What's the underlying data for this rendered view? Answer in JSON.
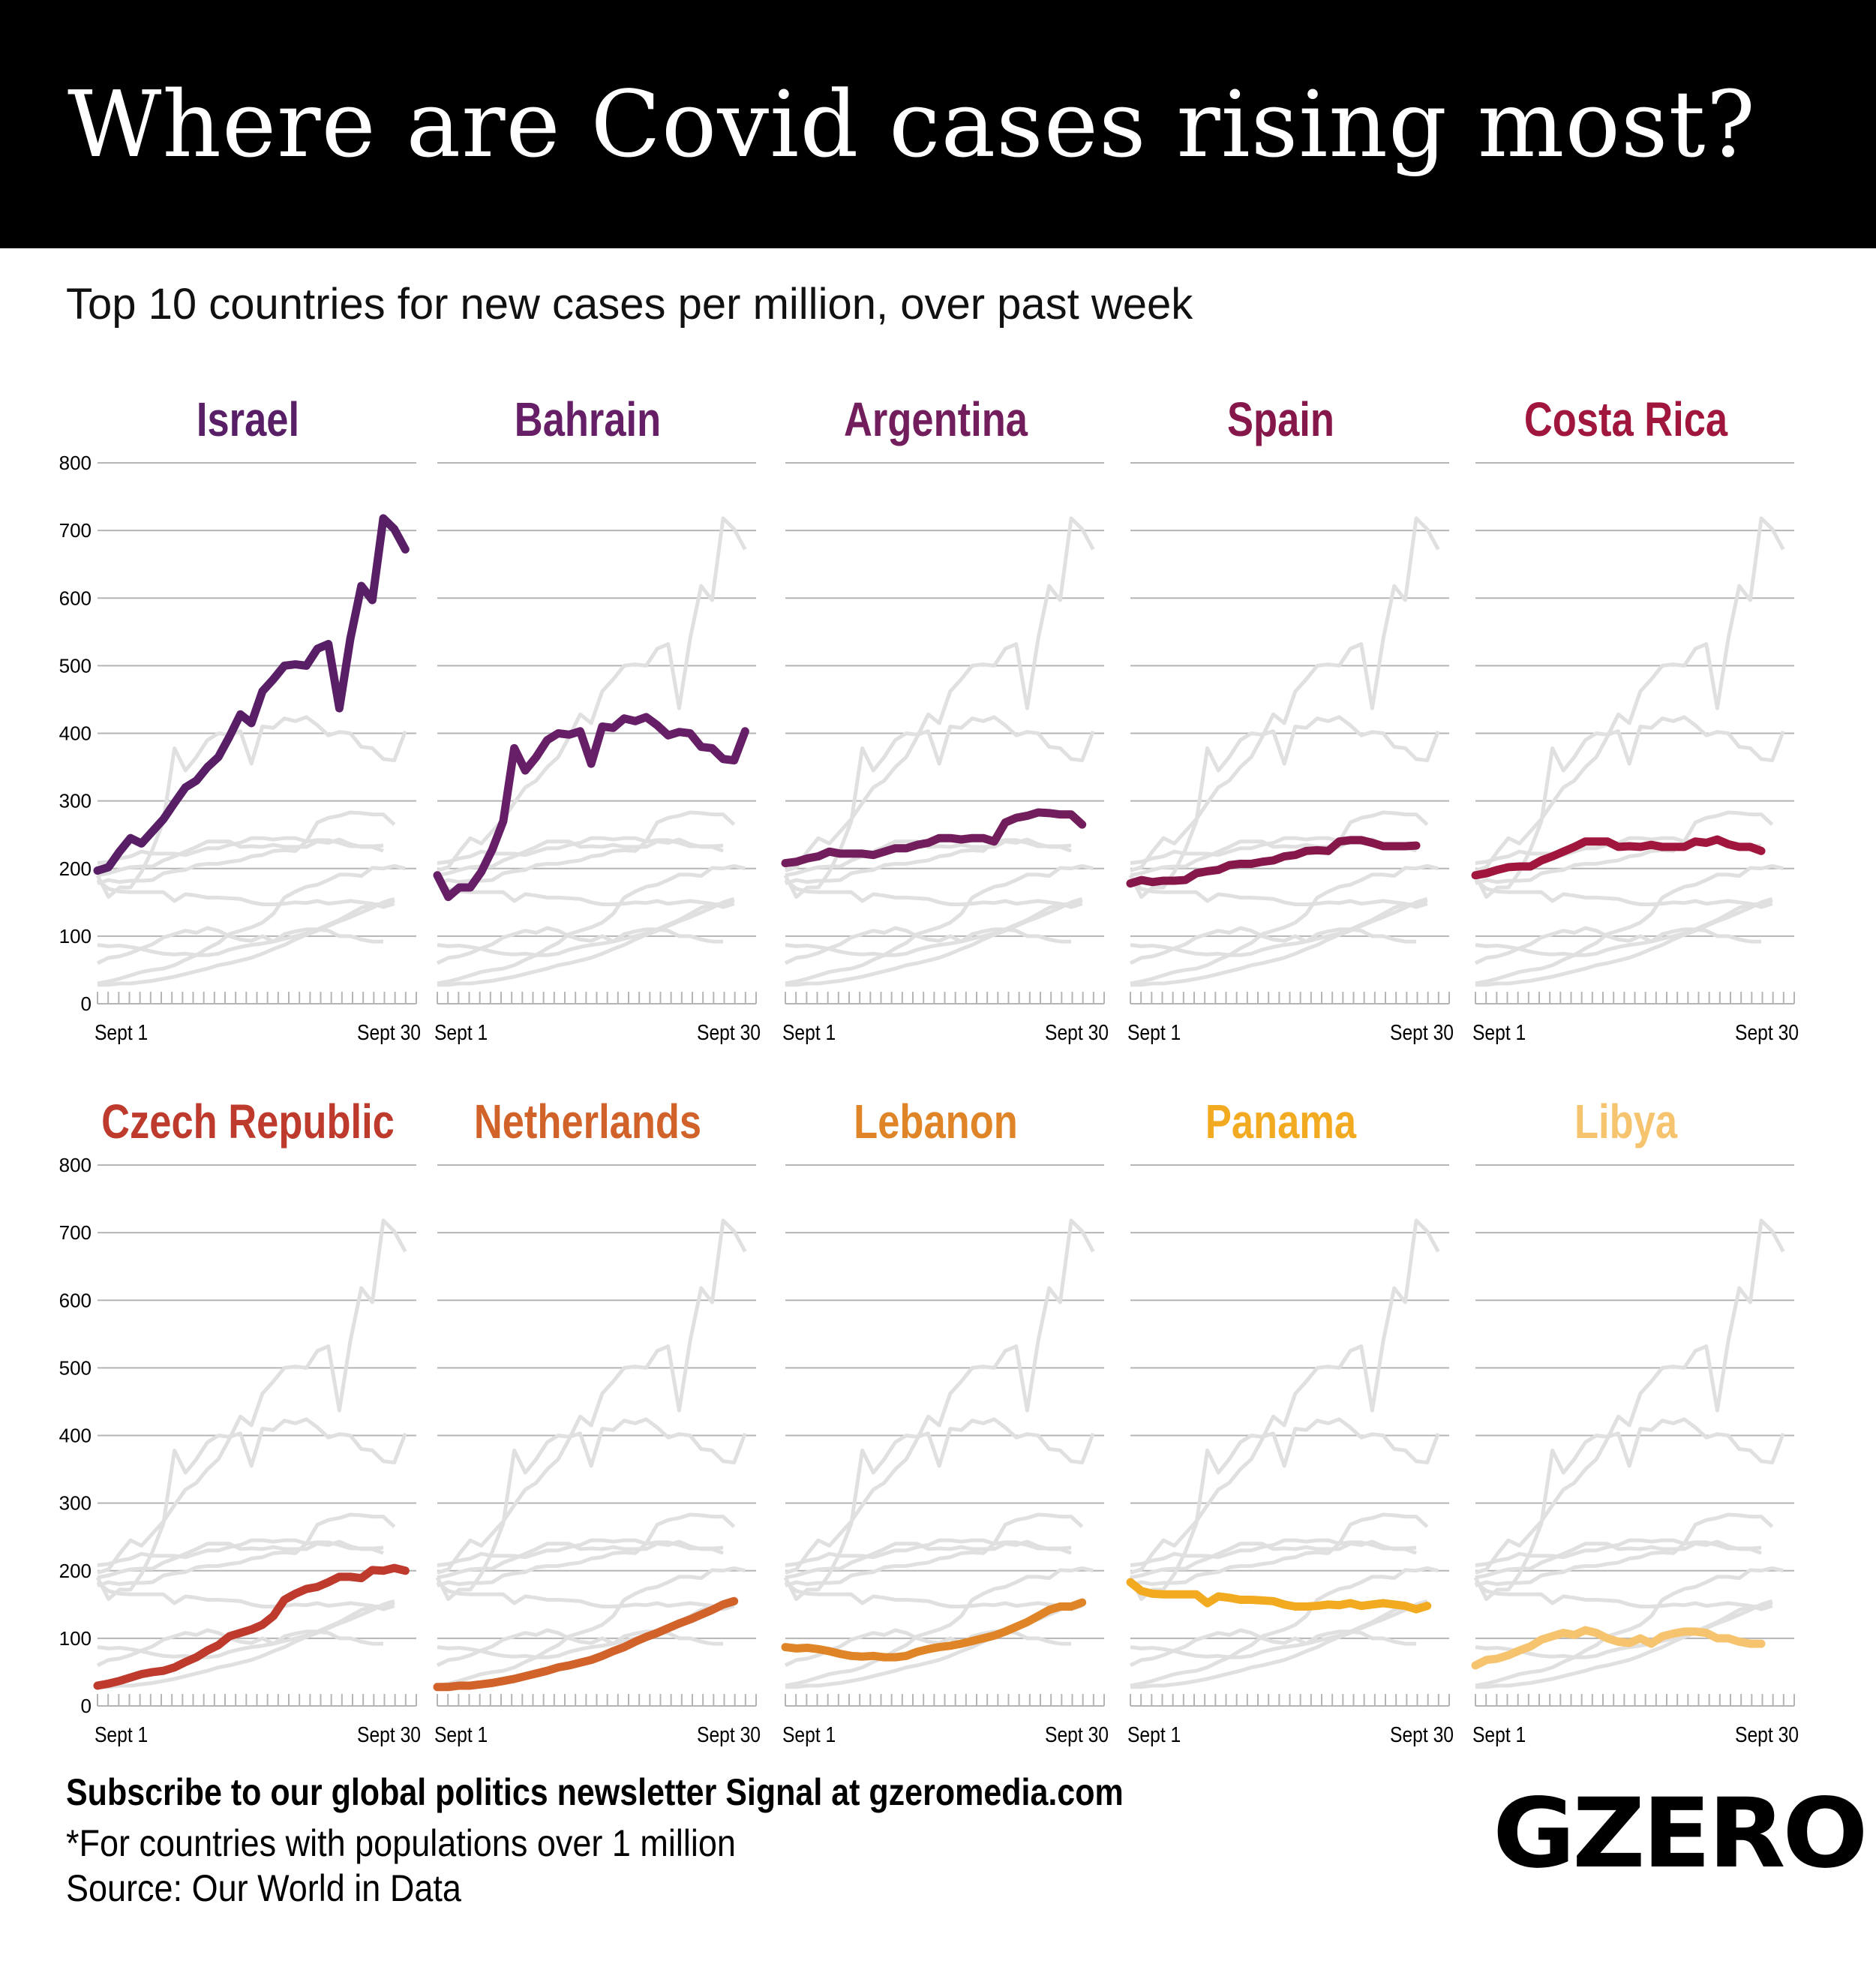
{
  "title": "Where are Covid cases rising most?",
  "subtitle": "Top 10 countries for new cases per million, over past week",
  "footer": {
    "subscribe": "Subscribe to our global politics newsletter Signal at gzeromedia.com",
    "note": "*For countries with populations over 1 million",
    "source": "Source: Our World in Data",
    "logo": "GZERO"
  },
  "chart_data": {
    "type": "line",
    "layout": "small multiples, 2 rows x 5 columns; each panel highlights one country over all others in grey",
    "ylim": [
      0,
      800
    ],
    "yticks": [
      "0",
      "100",
      "200",
      "300",
      "400",
      "500",
      "600",
      "700",
      "800"
    ],
    "x_start_label": "Sept 1",
    "x_end_label": "Sept 30",
    "grid": true,
    "grey_color": "#e0e0e0",
    "series": [
      {
        "name": "Israel",
        "color": "#581f66",
        "values": [
          197,
          202,
          225,
          245,
          237,
          255,
          273,
          297,
          320,
          330,
          350,
          365,
          395,
          428,
          415,
          462,
          480,
          500,
          502,
          500,
          525,
          532,
          437,
          540,
          618,
          597,
          718,
          702,
          672
        ]
      },
      {
        "name": "Bahrain",
        "color": "#661f66",
        "values": [
          190,
          158,
          172,
          172,
          195,
          228,
          270,
          378,
          345,
          365,
          390,
          400,
          398,
          403,
          355,
          410,
          408,
          422,
          418,
          424,
          412,
          397,
          402,
          400,
          380,
          378,
          362,
          360,
          403
        ]
      },
      {
        "name": "Argentina",
        "color": "#721d5c",
        "values": [
          208,
          210,
          215,
          218,
          225,
          222,
          222,
          222,
          220,
          225,
          230,
          230,
          235,
          238,
          245,
          245,
          243,
          245,
          245,
          240,
          268,
          275,
          278,
          283,
          282,
          280,
          280,
          265
        ]
      },
      {
        "name": "Spain",
        "color": "#85174a",
        "values": [
          178,
          183,
          180,
          182,
          182,
          183,
          193,
          196,
          198,
          205,
          207,
          207,
          210,
          212,
          218,
          220,
          226,
          227,
          226,
          240,
          242,
          242,
          238,
          233,
          233,
          233,
          234
        ]
      },
      {
        "name": "Costa Rica",
        "color": "#a0163c",
        "values": [
          190,
          193,
          198,
          202,
          203,
          203,
          212,
          218,
          225,
          232,
          240,
          240,
          240,
          232,
          233,
          232,
          235,
          232,
          232,
          232,
          240,
          238,
          243,
          236,
          232,
          232,
          226
        ]
      },
      {
        "name": "Czech Republic",
        "color": "#bd3a2c",
        "values": [
          30,
          33,
          37,
          42,
          47,
          50,
          52,
          57,
          65,
          72,
          82,
          90,
          103,
          108,
          113,
          120,
          133,
          157,
          166,
          173,
          176,
          183,
          191,
          191,
          189,
          201,
          200,
          204,
          200
        ]
      },
      {
        "name": "Netherlands",
        "color": "#d0622a",
        "values": [
          28,
          28,
          30,
          30,
          32,
          34,
          37,
          40,
          44,
          48,
          52,
          57,
          60,
          64,
          68,
          74,
          81,
          87,
          95,
          102,
          108,
          115,
          122,
          128,
          135,
          142,
          150,
          155
        ]
      },
      {
        "name": "Lebanon",
        "color": "#e08527",
        "values": [
          87,
          85,
          86,
          84,
          81,
          77,
          74,
          73,
          74,
          72,
          72,
          74,
          80,
          84,
          87,
          89,
          92,
          96,
          100,
          104,
          110,
          117,
          124,
          133,
          142,
          147,
          147,
          153
        ]
      },
      {
        "name": "Panama",
        "color": "#f2aa20",
        "values": [
          183,
          170,
          166,
          165,
          165,
          165,
          165,
          152,
          162,
          160,
          157,
          157,
          156,
          155,
          150,
          147,
          147,
          148,
          150,
          149,
          152,
          148,
          150,
          152,
          150,
          148,
          143,
          148
        ]
      },
      {
        "name": "Libya",
        "color": "#f6c46f",
        "values": [
          60,
          68,
          70,
          75,
          82,
          88,
          98,
          103,
          108,
          105,
          112,
          108,
          100,
          95,
          93,
          100,
          92,
          103,
          107,
          110,
          110,
          108,
          100,
          100,
          95,
          92,
          92
        ]
      }
    ]
  }
}
